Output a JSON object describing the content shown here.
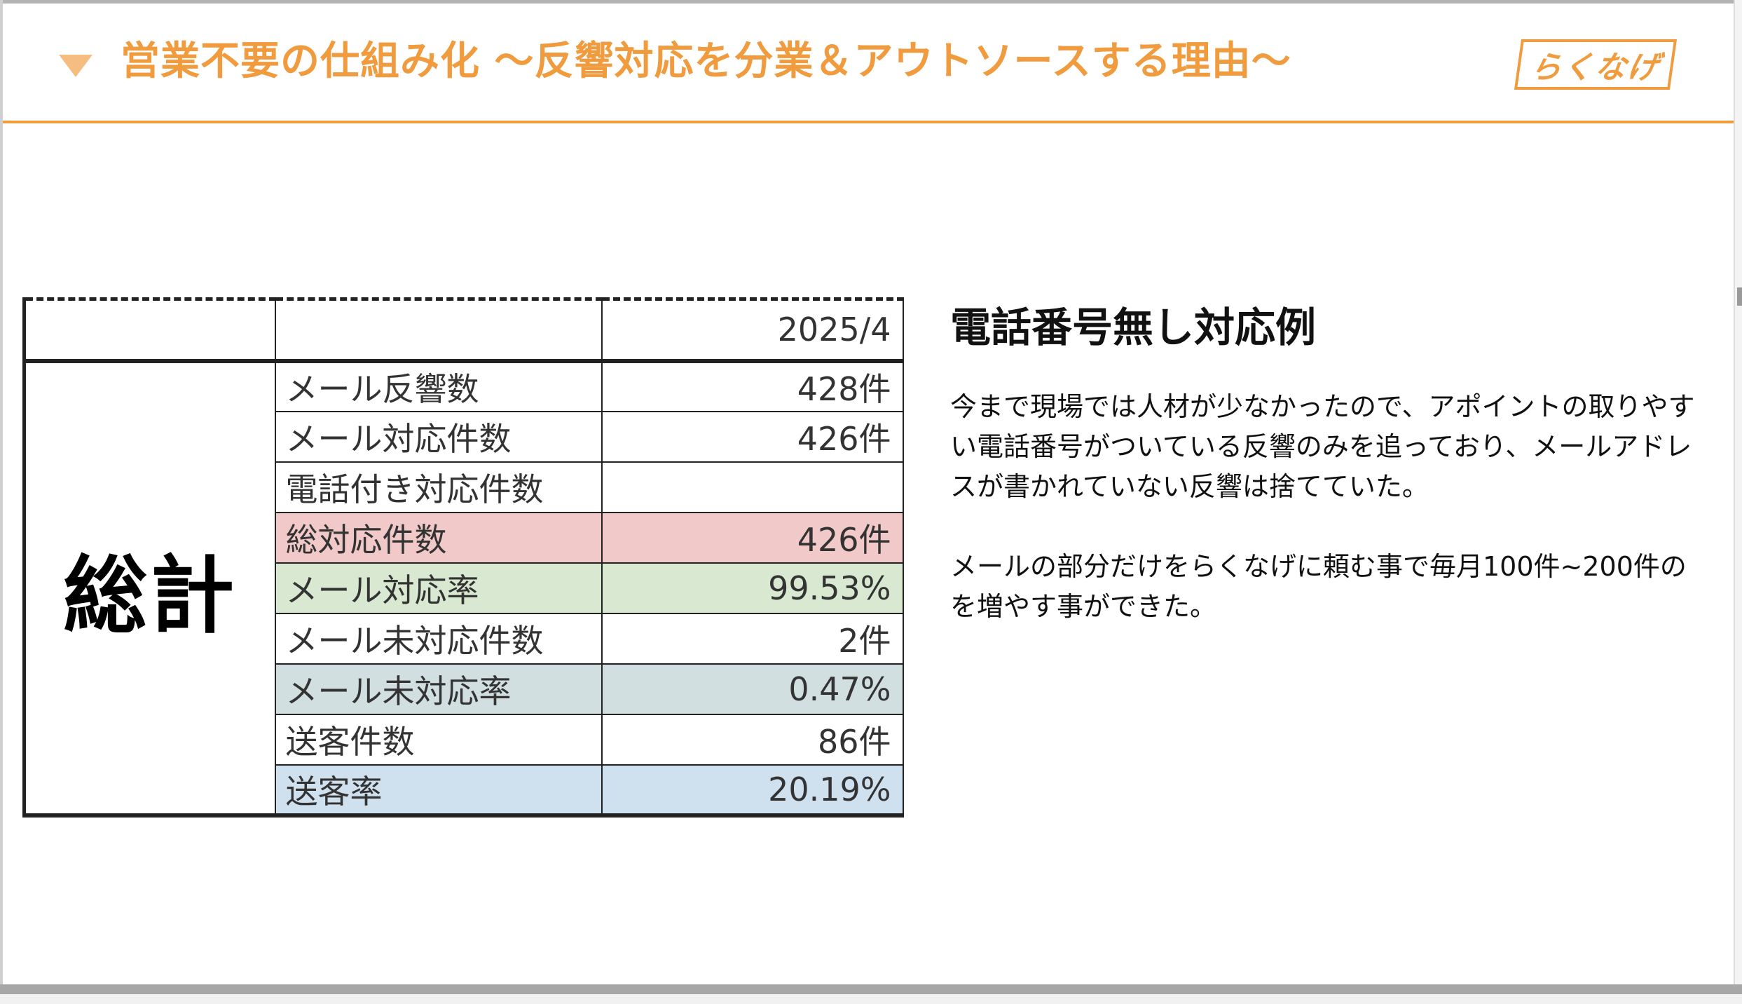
{
  "header": {
    "title": "営業不要の仕組み化 〜反響対応を分業＆アウトソースする理由〜",
    "logo_text": "らくなげ",
    "accent_color": "#ef9b3e"
  },
  "table": {
    "period_header": "2025/4",
    "group_label": "総計",
    "rows": [
      {
        "label": "メール反響数",
        "value": "428件",
        "bg": "#ffffff"
      },
      {
        "label": "メール対応件数",
        "value": "426件",
        "bg": "#ffffff"
      },
      {
        "label": "電話付き対応件数",
        "value": "",
        "bg": "#ffffff"
      },
      {
        "label": "総対応件数",
        "value": "426件",
        "bg": "#f2c9c9"
      },
      {
        "label": "メール対応率",
        "value": "99.53%",
        "bg": "#d8e8d1"
      },
      {
        "label": "メール未対応件数",
        "value": "2件",
        "bg": "#ffffff"
      },
      {
        "label": "メール未対応率",
        "value": "0.47%",
        "bg": "#d1dfe1"
      },
      {
        "label": "送客件数",
        "value": "86件",
        "bg": "#ffffff"
      },
      {
        "label": "送客率",
        "value": "20.19%",
        "bg": "#cfe0ee"
      }
    ]
  },
  "side": {
    "heading": "電話番号無し対応例",
    "paragraph1": "今まで現場では人材が少なかったので、アポイントの取りやすい電話番号がついている反響のみを追っており、メールアドレスが書かれていない反響は捨てていた。",
    "paragraph2": "メールの部分だけをらくなげに頼む事で毎月100件~200件のを増やす事ができた。"
  }
}
